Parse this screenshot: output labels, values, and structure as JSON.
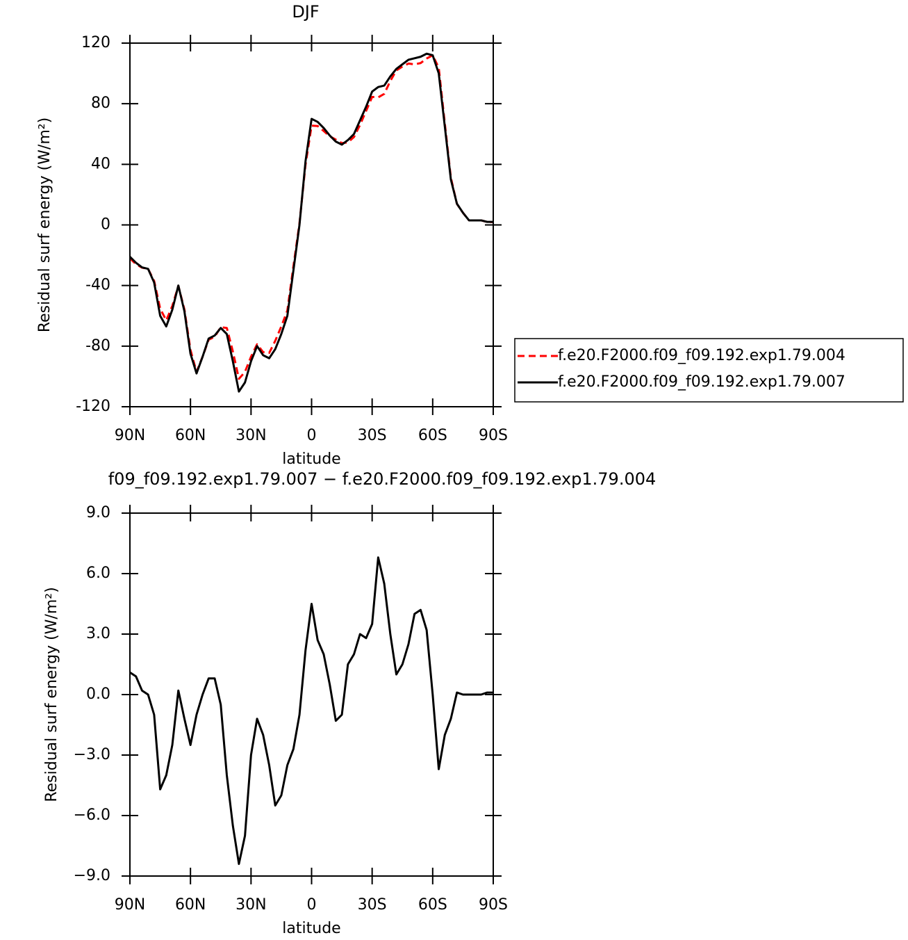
{
  "chart_data": [
    {
      "type": "line",
      "title": "DJF",
      "xlabel": "latitude",
      "ylabel": "Residual surf energy (W/m²)",
      "x": [
        90,
        87,
        84,
        81,
        78,
        75,
        72,
        69,
        66,
        63,
        60,
        57,
        54,
        51,
        48,
        45,
        42,
        39,
        36,
        33,
        30,
        27,
        24,
        21,
        18,
        15,
        12,
        9,
        6,
        3,
        0,
        -3,
        -6,
        -9,
        -12,
        -15,
        -18,
        -21,
        -24,
        -27,
        -30,
        -33,
        -36,
        -39,
        -42,
        -45,
        -48,
        -51,
        -54,
        -57,
        -60,
        -63,
        -66,
        -69,
        -72,
        -75,
        -78,
        -81,
        -84,
        -87,
        -90
      ],
      "xlim": [
        90,
        -90
      ],
      "xticks": [
        {
          "value": 90,
          "label": "90N"
        },
        {
          "value": 60,
          "label": "60N"
        },
        {
          "value": 30,
          "label": "30N"
        },
        0,
        {
          "value": -30,
          "label": "30S"
        },
        {
          "value": -60,
          "label": "60S"
        },
        {
          "value": -90,
          "label": "90S"
        }
      ],
      "ylim": [
        -120,
        120
      ],
      "yticks": [
        -120,
        -80,
        -40,
        0,
        40,
        80,
        120
      ],
      "legend": "right",
      "series": [
        {
          "name": "f.e20.F2000.f09_f09.192.exp1.79.004",
          "color": "#ff0000",
          "style": "dashed",
          "values": [
            -22.1,
            -25.9,
            -28.2,
            -29,
            -37,
            -55.3,
            -63,
            -53.5,
            -40.2,
            -55.8,
            -82.5,
            -97,
            -87,
            -75.8,
            -73.8,
            -67.5,
            -68,
            -83.5,
            -101.6,
            -97,
            -87,
            -78.8,
            -84,
            -84.5,
            -76.5,
            -67,
            -56.5,
            -27.3,
            1,
            39.8,
            65.5,
            65.3,
            62,
            58.5,
            56.3,
            54,
            54.5,
            58,
            66,
            75.2,
            84.5,
            84.2,
            86.5,
            95,
            102,
            104.5,
            106.5,
            106,
            106.8,
            109.8,
            112,
            103.7,
            67,
            31.2,
            13.9,
            8,
            3,
            3,
            3,
            1.9,
            1.9
          ]
        },
        {
          "name": "f.e20.F2000.f09_f09.192.exp1.79.007",
          "color": "#000000",
          "style": "solid",
          "values": [
            -21,
            -25,
            -28,
            -29,
            -38,
            -60,
            -67,
            -56,
            -40,
            -57,
            -85,
            -98,
            -87,
            -75,
            -73,
            -68,
            -72,
            -90,
            -110,
            -104,
            -90,
            -80,
            -86,
            -88,
            -82,
            -72,
            -60,
            -30,
            0,
            42,
            70,
            68,
            64,
            59,
            55,
            53,
            56,
            60,
            69,
            78,
            88,
            91,
            92,
            98,
            103,
            106,
            109,
            110,
            111,
            113,
            112,
            100,
            65,
            30,
            14,
            8,
            3,
            3,
            3,
            2,
            2
          ]
        }
      ]
    },
    {
      "type": "line",
      "title": "f09_f09.192.exp1.79.007 − f.e20.F2000.f09_f09.192.exp1.79.004",
      "xlabel": "latitude",
      "ylabel": "Residual surf energy (W/m²)",
      "x": [
        90,
        87,
        84,
        81,
        78,
        75,
        72,
        69,
        66,
        63,
        60,
        57,
        54,
        51,
        48,
        45,
        42,
        39,
        36,
        33,
        30,
        27,
        24,
        21,
        18,
        15,
        12,
        9,
        6,
        3,
        0,
        -3,
        -6,
        -9,
        -12,
        -15,
        -18,
        -21,
        -24,
        -27,
        -30,
        -33,
        -36,
        -39,
        -42,
        -45,
        -48,
        -51,
        -54,
        -57,
        -60,
        -63,
        -66,
        -69,
        -72,
        -75,
        -78,
        -81,
        -84,
        -87,
        -90
      ],
      "xlim": [
        90,
        -90
      ],
      "xticks": [
        {
          "value": 90,
          "label": "90N"
        },
        {
          "value": 60,
          "label": "60N"
        },
        {
          "value": 30,
          "label": "30N"
        },
        0,
        {
          "value": -30,
          "label": "30S"
        },
        {
          "value": -60,
          "label": "60S"
        },
        {
          "value": -90,
          "label": "90S"
        }
      ],
      "ylim": [
        -9,
        9
      ],
      "yticks": [
        {
          "value": -9,
          "label": "−9.0"
        },
        {
          "value": -6,
          "label": "−6.0"
        },
        {
          "value": -3,
          "label": "−3.0"
        },
        {
          "value": 0,
          "label": "0.0"
        },
        {
          "value": 3,
          "label": "3.0"
        },
        {
          "value": 6,
          "label": "6.0"
        },
        {
          "value": 9,
          "label": "9.0"
        }
      ],
      "series": [
        {
          "color": "#000000",
          "style": "solid",
          "values": [
            1.1,
            0.9,
            0.2,
            0.0,
            -1.0,
            -4.7,
            -4.0,
            -2.5,
            0.2,
            -1.2,
            -2.5,
            -1.0,
            0.0,
            0.8,
            0.8,
            -0.5,
            -4.0,
            -6.5,
            -8.4,
            -7.0,
            -3.0,
            -1.2,
            -2.0,
            -3.5,
            -5.5,
            -5.0,
            -3.5,
            -2.7,
            -1.0,
            2.2,
            4.5,
            2.7,
            2.0,
            0.5,
            -1.3,
            -1.0,
            1.5,
            2.0,
            3.0,
            2.8,
            3.5,
            6.8,
            5.5,
            3.0,
            1.0,
            1.5,
            2.5,
            4.0,
            4.2,
            3.2,
            0.0,
            -3.7,
            -2.0,
            -1.2,
            0.1,
            0.0,
            0.0,
            0.0,
            0.0,
            0.1,
            0.1
          ]
        }
      ]
    }
  ]
}
